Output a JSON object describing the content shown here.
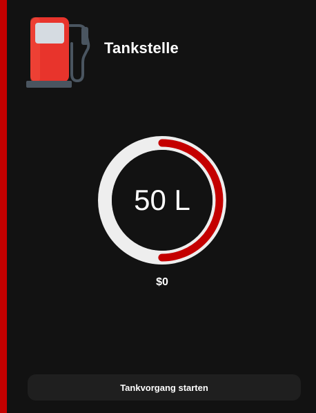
{
  "app": {
    "title": "Tankstelle",
    "icon": "fuel-pump-icon"
  },
  "gauge": {
    "label": "50 L",
    "fill_fraction": 0.5
  },
  "price": "$0",
  "actions": {
    "start_label": "Tankvorgang starten"
  },
  "colors": {
    "accent": "#c40000",
    "background": "#121212",
    "gauge_track": "#eeeeee",
    "button_bg": "#1f1f1f",
    "pump_body": "#e8342c",
    "pump_window": "#d5dbe1",
    "pump_base": "#4a5560"
  }
}
